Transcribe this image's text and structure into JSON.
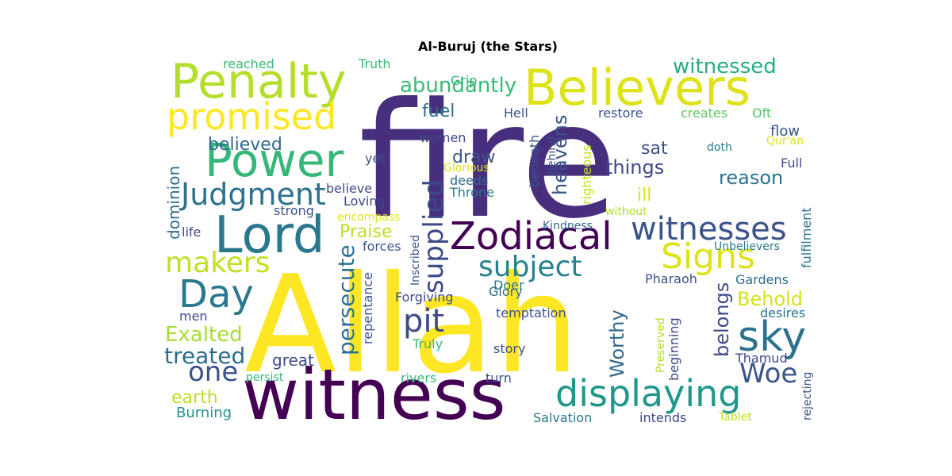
{
  "title": "Al-Buruj (the Stars)",
  "words": [
    {
      "text": "fire",
      "color": "#472f7d"
    },
    {
      "text": "Allah",
      "color": "#fde725"
    },
    {
      "text": "witness",
      "color": "#440154"
    },
    {
      "text": "Believers",
      "color": "#dde318"
    },
    {
      "text": "Penalty",
      "color": "#b5de2b"
    },
    {
      "text": "Lord",
      "color": "#2a788e"
    },
    {
      "text": "Power",
      "color": "#35b779"
    },
    {
      "text": "Zodiacal",
      "color": "#440154"
    },
    {
      "text": "promised",
      "color": "#fde725"
    },
    {
      "text": "displaying",
      "color": "#1f988b"
    },
    {
      "text": "Judgment",
      "color": "#2c728e"
    },
    {
      "text": "witnesses",
      "color": "#3b528b"
    },
    {
      "text": "Signs",
      "color": "#dde318"
    },
    {
      "text": "Day",
      "color": "#2a788e"
    },
    {
      "text": "subject",
      "color": "#26828e"
    },
    {
      "text": "makers",
      "color": "#c2df23"
    },
    {
      "text": "sky",
      "color": "#2c728e"
    },
    {
      "text": "supplied",
      "color": "#3e4989"
    },
    {
      "text": "pit",
      "color": "#3e4989"
    },
    {
      "text": "Woe",
      "color": "#39568c"
    },
    {
      "text": "one",
      "color": "#3b528b"
    },
    {
      "text": "witnessed",
      "color": "#25ac82"
    },
    {
      "text": "persecute",
      "color": "#2c728e"
    },
    {
      "text": "treated",
      "color": "#2f6c8e"
    },
    {
      "text": "Exalted",
      "color": "#a8db34"
    },
    {
      "text": "abundantly",
      "color": "#3aba76"
    },
    {
      "text": "belongs",
      "color": "#3e4989"
    },
    {
      "text": "Worthy",
      "color": "#31688e"
    },
    {
      "text": "heavens",
      "color": "#3b528b"
    },
    {
      "text": "things",
      "color": "#3f4788"
    },
    {
      "text": "reason",
      "color": "#2c728e"
    },
    {
      "text": "Behold",
      "color": "#d5e21a"
    },
    {
      "text": "believed",
      "color": "#31688e"
    },
    {
      "text": "dominion",
      "color": "#2f6c8e"
    },
    {
      "text": "earth",
      "color": "#bddf26"
    },
    {
      "text": "fuel",
      "color": "#2e6f8e"
    },
    {
      "text": "sat",
      "color": "#3b528b"
    },
    {
      "text": "draw",
      "color": "#3b528b"
    },
    {
      "text": "Praise",
      "color": "#bddf26"
    },
    {
      "text": "great",
      "color": "#3e4a89"
    },
    {
      "text": "ill",
      "color": "#dde318"
    },
    {
      "text": "Burning",
      "color": "#21918c"
    },
    {
      "text": "fulfilment",
      "color": "#2a768e"
    },
    {
      "text": "righteous",
      "color": "#c8e020"
    },
    {
      "text": "Hell",
      "color": "#3b528b"
    },
    {
      "text": "restore",
      "color": "#3b528b"
    },
    {
      "text": "creates",
      "color": "#5ec962"
    },
    {
      "text": "Oft",
      "color": "#52c569"
    },
    {
      "text": "flow",
      "color": "#3b528b"
    },
    {
      "text": "Full",
      "color": "#3e4a89"
    },
    {
      "text": "beneath",
      "color": "#3b528b"
    },
    {
      "text": "Gardens",
      "color": "#2e6e8e"
    },
    {
      "text": "desires",
      "color": "#2c728e"
    },
    {
      "text": "Truly",
      "color": "#3aba76"
    },
    {
      "text": "story",
      "color": "#3e4989"
    },
    {
      "text": "Salvation",
      "color": "#2a788e"
    },
    {
      "text": "intends",
      "color": "#3e4989"
    },
    {
      "text": "rivers",
      "color": "#38b977"
    },
    {
      "text": "turn",
      "color": "#3b528b"
    },
    {
      "text": "Thamud",
      "color": "#3e4989"
    },
    {
      "text": "Tablet",
      "color": "#c2df23"
    },
    {
      "text": "beginning",
      "color": "#3e4989"
    },
    {
      "text": "Preserved",
      "color": "#b5de2b"
    },
    {
      "text": "rejecting",
      "color": "#3b528b"
    },
    {
      "text": "temptation",
      "color": "#3b528b"
    },
    {
      "text": "repentance",
      "color": "#3b528b"
    },
    {
      "text": "Forgiving",
      "color": "#3e4989"
    },
    {
      "text": "Glory",
      "color": "#31688e"
    },
    {
      "text": "Doer",
      "color": "#2a788e"
    },
    {
      "text": "Pharaoh",
      "color": "#3b528b"
    },
    {
      "text": "Unbelievers",
      "color": "#2a788e"
    },
    {
      "text": "Inscribed",
      "color": "#3b528b"
    },
    {
      "text": "forces",
      "color": "#3b528b"
    },
    {
      "text": "Kindness",
      "color": "#31688e"
    },
    {
      "text": "without",
      "color": "#b5de2b"
    },
    {
      "text": "women",
      "color": "#3e4989"
    },
    {
      "text": "behind",
      "color": "#3b528b"
    },
    {
      "text": "Glorious",
      "color": "#dde318"
    },
    {
      "text": "deeds",
      "color": "#31688e"
    },
    {
      "text": "Throne",
      "color": "#2a788e"
    },
    {
      "text": "yet",
      "color": "#3b528b"
    },
    {
      "text": "believe",
      "color": "#3e4989"
    },
    {
      "text": "Loving",
      "color": "#3e4989"
    },
    {
      "text": "encompass",
      "color": "#dde318"
    },
    {
      "text": "strong",
      "color": "#3b528b"
    },
    {
      "text": "life",
      "color": "#3e4989"
    },
    {
      "text": "men",
      "color": "#3e4989"
    },
    {
      "text": "persist",
      "color": "#35b779"
    },
    {
      "text": "reached",
      "color": "#3aba76"
    },
    {
      "text": "Grip",
      "color": "#35b779"
    },
    {
      "text": "Truth",
      "color": "#3aba76"
    },
    {
      "text": "doth",
      "color": "#2a788e"
    },
    {
      "text": "Qur'an",
      "color": "#dde318"
    }
  ]
}
